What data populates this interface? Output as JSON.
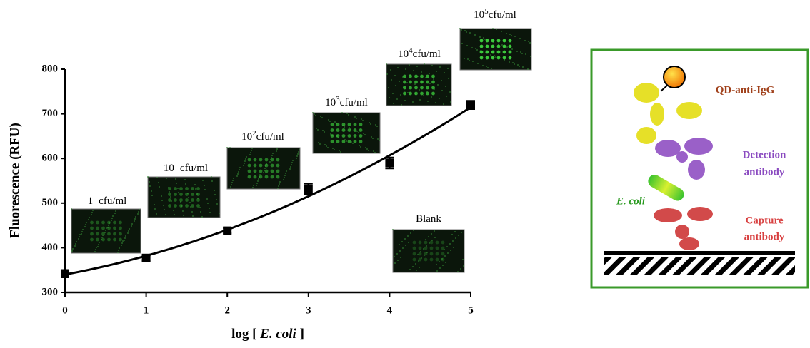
{
  "chart_data": {
    "type": "scatter",
    "x": [
      0,
      1,
      2,
      3,
      4,
      5
    ],
    "values": [
      342,
      377,
      438,
      532,
      590,
      720
    ],
    "errors": [
      8,
      6,
      6,
      12,
      12,
      9
    ],
    "color": "#000000",
    "fit": "quadratic",
    "xlim": [
      0,
      5
    ],
    "xticks": [
      0,
      1,
      2,
      3,
      4,
      5
    ],
    "ylim": [
      300,
      800
    ],
    "yticks": [
      300,
      400,
      500,
      600,
      700,
      800
    ],
    "ylabel": "Fluorescence (RFU)",
    "xlabel": {
      "pre": "log [",
      "italic": "E. coli",
      "post": "]"
    },
    "annotations": [
      {
        "base": "1",
        "unit": "cfu/ml"
      },
      {
        "base": "10",
        "unit": "cfu/ml"
      },
      {
        "base": "10",
        "exp": "2",
        "unit": "cfu/ml"
      },
      {
        "base": "10",
        "exp": "3",
        "unit": "cfu/ml"
      },
      {
        "base": "10",
        "exp": "4",
        "unit": "cfu/ml"
      },
      {
        "base": "10",
        "exp": "5",
        "unit": "cfu/ml"
      },
      {
        "base": "Blank"
      }
    ]
  },
  "diagram": {
    "qd": "QD-anti-IgG",
    "detection": [
      "Detection",
      "antibody"
    ],
    "bacteria": "E. coli",
    "capture": [
      "Capture",
      "antibody"
    ]
  }
}
